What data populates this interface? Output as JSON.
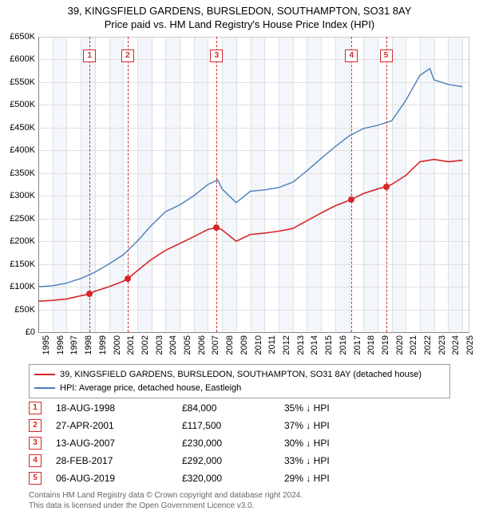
{
  "title_line1": "39, KINGSFIELD GARDENS, BURSLEDON, SOUTHAMPTON, SO31 8AY",
  "title_line2": "Price paid vs. HM Land Registry's House Price Index (HPI)",
  "chart": {
    "type": "line",
    "background_color": "#ffffff",
    "grid_color": "#e0e0e0",
    "band_color": "#f3f6fa",
    "axis_color": "#888888",
    "x_min": 1995.0,
    "x_max": 2025.5,
    "y_min": 0,
    "y_max": 650000,
    "y_ticks": [
      0,
      50000,
      100000,
      150000,
      200000,
      250000,
      300000,
      350000,
      400000,
      450000,
      500000,
      550000,
      600000,
      650000
    ],
    "y_tick_labels": [
      "£0",
      "£50K",
      "£100K",
      "£150K",
      "£200K",
      "£250K",
      "£300K",
      "£350K",
      "£400K",
      "£450K",
      "£500K",
      "£550K",
      "£600K",
      "£650K"
    ],
    "x_ticks": [
      1995,
      1996,
      1997,
      1998,
      1999,
      2000,
      2001,
      2002,
      2003,
      2004,
      2005,
      2006,
      2007,
      2008,
      2009,
      2010,
      2011,
      2012,
      2013,
      2014,
      2015,
      2016,
      2017,
      2018,
      2019,
      2020,
      2021,
      2022,
      2023,
      2024,
      2025
    ],
    "tick_fontsize": 11,
    "title_fontsize": 13,
    "marker_dash": "3,3",
    "series": {
      "property": {
        "label": "39, KINGSFIELD GARDENS, BURSLEDON, SOUTHAMPTON, SO31 8AY (detached house)",
        "color": "#d62728",
        "line_width": 1.6,
        "points": [
          [
            1995.0,
            68000
          ],
          [
            1996.0,
            70000
          ],
          [
            1997.0,
            73000
          ],
          [
            1998.0,
            80000
          ],
          [
            1998.63,
            84000
          ],
          [
            1999.0,
            90000
          ],
          [
            2000.0,
            100000
          ],
          [
            2001.0,
            112000
          ],
          [
            2001.32,
            117500
          ],
          [
            2002.0,
            135000
          ],
          [
            2003.0,
            160000
          ],
          [
            2004.0,
            180000
          ],
          [
            2005.0,
            195000
          ],
          [
            2006.0,
            210000
          ],
          [
            2007.0,
            226000
          ],
          [
            2007.62,
            230000
          ],
          [
            2008.0,
            225000
          ],
          [
            2009.0,
            200000
          ],
          [
            2010.0,
            215000
          ],
          [
            2011.0,
            218000
          ],
          [
            2012.0,
            222000
          ],
          [
            2013.0,
            228000
          ],
          [
            2014.0,
            245000
          ],
          [
            2015.0,
            262000
          ],
          [
            2016.0,
            278000
          ],
          [
            2017.0,
            290000
          ],
          [
            2017.16,
            292000
          ],
          [
            2018.0,
            305000
          ],
          [
            2019.0,
            315000
          ],
          [
            2019.6,
            320000
          ],
          [
            2020.0,
            325000
          ],
          [
            2021.0,
            345000
          ],
          [
            2022.0,
            375000
          ],
          [
            2023.0,
            380000
          ],
          [
            2024.0,
            375000
          ],
          [
            2025.0,
            378000
          ]
        ]
      },
      "hpi": {
        "label": "HPI: Average price, detached house, Eastleigh",
        "color": "#4a7ebb",
        "line_width": 1.4,
        "points": [
          [
            1995.0,
            100000
          ],
          [
            1996.0,
            102000
          ],
          [
            1997.0,
            108000
          ],
          [
            1998.0,
            118000
          ],
          [
            1999.0,
            132000
          ],
          [
            2000.0,
            150000
          ],
          [
            2001.0,
            170000
          ],
          [
            2002.0,
            200000
          ],
          [
            2003.0,
            235000
          ],
          [
            2004.0,
            265000
          ],
          [
            2005.0,
            280000
          ],
          [
            2006.0,
            300000
          ],
          [
            2007.0,
            325000
          ],
          [
            2007.7,
            335000
          ],
          [
            2008.0,
            315000
          ],
          [
            2009.0,
            285000
          ],
          [
            2010.0,
            310000
          ],
          [
            2011.0,
            313000
          ],
          [
            2012.0,
            318000
          ],
          [
            2013.0,
            330000
          ],
          [
            2014.0,
            355000
          ],
          [
            2015.0,
            382000
          ],
          [
            2016.0,
            408000
          ],
          [
            2017.0,
            432000
          ],
          [
            2018.0,
            448000
          ],
          [
            2019.0,
            455000
          ],
          [
            2020.0,
            465000
          ],
          [
            2021.0,
            510000
          ],
          [
            2022.0,
            565000
          ],
          [
            2022.7,
            580000
          ],
          [
            2023.0,
            555000
          ],
          [
            2024.0,
            545000
          ],
          [
            2025.0,
            540000
          ]
        ]
      }
    },
    "sale_markers": [
      {
        "idx": "1",
        "year": 1998.63,
        "price": 84000,
        "box_top": 62
      },
      {
        "idx": "2",
        "year": 2001.32,
        "price": 117500,
        "box_top": 62
      },
      {
        "idx": "3",
        "year": 2007.62,
        "price": 230000,
        "box_top": 62
      },
      {
        "idx": "4",
        "year": 2017.16,
        "price": 292000,
        "box_top": 62
      },
      {
        "idx": "5",
        "year": 2019.6,
        "price": 320000,
        "box_top": 62
      }
    ]
  },
  "legend": {
    "items": [
      {
        "color": "#d62728",
        "label_key": "chart.series.property.label"
      },
      {
        "color": "#4a7ebb",
        "label_key": "chart.series.hpi.label"
      }
    ]
  },
  "sales_table": {
    "arrow": "↓",
    "suffix": " HPI",
    "rows": [
      {
        "idx": "1",
        "date": "18-AUG-1998",
        "price": "£84,000",
        "delta": "35%"
      },
      {
        "idx": "2",
        "date": "27-APR-2001",
        "price": "£117,500",
        "delta": "37%"
      },
      {
        "idx": "3",
        "date": "13-AUG-2007",
        "price": "£230,000",
        "delta": "30%"
      },
      {
        "idx": "4",
        "date": "28-FEB-2017",
        "price": "£292,000",
        "delta": "33%"
      },
      {
        "idx": "5",
        "date": "06-AUG-2019",
        "price": "£320,000",
        "delta": "29%"
      }
    ]
  },
  "footer_line1": "Contains HM Land Registry data © Crown copyright and database right 2024.",
  "footer_line2": "This data is licensed under the Open Government Licence v3.0."
}
